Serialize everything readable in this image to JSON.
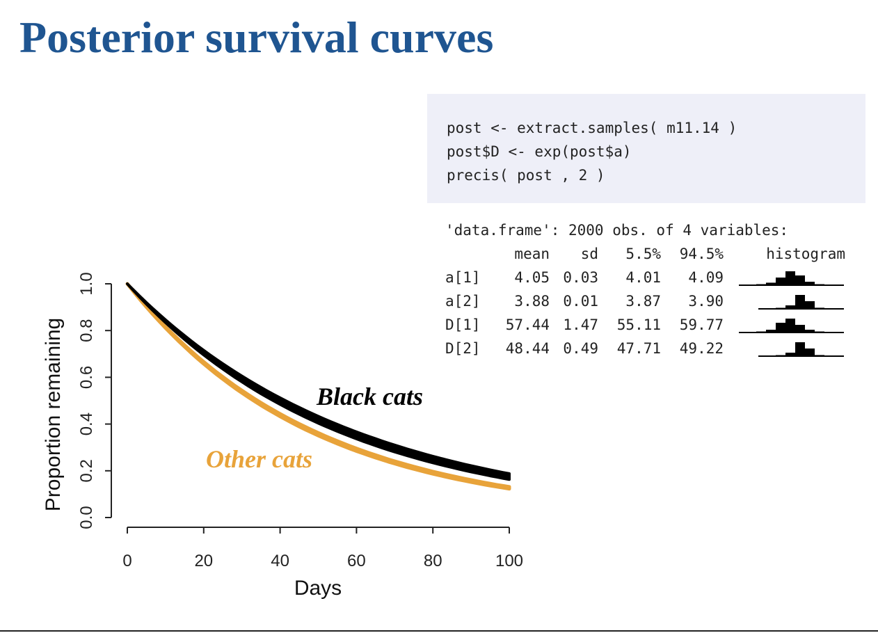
{
  "title": "Posterior survival curves",
  "code": [
    "post <- extract.samples( m11.14 )",
    "post$D <- exp(post$a)",
    "precis( post , 2 )"
  ],
  "precis": {
    "header_line": "'data.frame': 2000 obs. of 4 variables:",
    "columns": [
      "mean",
      "sd",
      "5.5%",
      "94.5%",
      "histogram"
    ],
    "rows": [
      {
        "name": "a[1]",
        "mean": "4.05",
        "sd": "0.03",
        "lo": "4.01",
        "hi": "4.09",
        "hist": [
          0.05,
          0.18,
          0.55,
          1.0,
          0.7,
          0.25,
          0.05
        ]
      },
      {
        "name": "a[2]",
        "mean": "3.88",
        "sd": "0.01",
        "lo": "3.87",
        "hi": "3.90",
        "hist": [
          0.05,
          0.25,
          1.0,
          0.55,
          0.08
        ]
      },
      {
        "name": "D[1]",
        "mean": "57.44",
        "sd": "1.47",
        "lo": "55.11",
        "hi": "59.77",
        "hist": [
          0.05,
          0.2,
          0.7,
          1.0,
          0.55,
          0.2,
          0.05
        ]
      },
      {
        "name": "D[2]",
        "mean": "48.44",
        "sd": "0.49",
        "lo": "47.71",
        "hi": "49.22",
        "hist": [
          0.05,
          0.25,
          1.0,
          0.55,
          0.08
        ]
      }
    ]
  },
  "chart_data": {
    "type": "line",
    "title": "",
    "xlabel": "Days",
    "ylabel": "Proportion remaining",
    "xlim": [
      0,
      100
    ],
    "ylim": [
      0,
      1
    ],
    "xticks": [
      "0",
      "20",
      "40",
      "60",
      "80",
      "100"
    ],
    "yticks": [
      "0.0",
      "0.2",
      "0.4",
      "0.6",
      "0.8",
      "1.0"
    ],
    "series": [
      {
        "name": "Black cats",
        "color": "#000000",
        "rate_D": 57.44,
        "rate_lo": 55.11,
        "rate_hi": 59.77,
        "x": [
          0,
          20,
          40,
          60,
          80,
          100
        ],
        "y": [
          1.0,
          0.71,
          0.5,
          0.35,
          0.25,
          0.18
        ]
      },
      {
        "name": "Other cats",
        "color": "#e8a33a",
        "rate_D": 48.44,
        "rate_lo": 47.71,
        "rate_hi": 49.22,
        "x": [
          0,
          20,
          40,
          60,
          80,
          100
        ],
        "y": [
          1.0,
          0.66,
          0.44,
          0.29,
          0.19,
          0.13
        ]
      }
    ],
    "grid": false,
    "legend": "none"
  }
}
